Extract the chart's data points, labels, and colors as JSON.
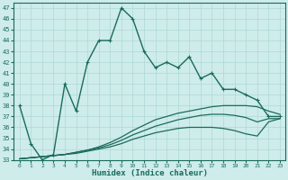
{
  "xlabel": "Humidex (Indice chaleur)",
  "background_color": "#ceecea",
  "grid_color": "#aed8d4",
  "line_color": "#1a6b5a",
  "xlim": [
    -0.5,
    23.5
  ],
  "ylim": [
    33,
    47.5
  ],
  "yticks": [
    33,
    34,
    35,
    36,
    37,
    38,
    39,
    40,
    41,
    42,
    43,
    44,
    45,
    46,
    47
  ],
  "xticks": [
    0,
    1,
    2,
    3,
    4,
    5,
    6,
    7,
    8,
    9,
    10,
    11,
    12,
    13,
    14,
    15,
    16,
    17,
    18,
    19,
    20,
    21,
    22,
    23
  ],
  "series": [
    {
      "x": [
        0,
        1,
        2,
        3,
        4,
        5,
        6,
        7,
        8,
        9,
        10,
        11,
        12,
        13,
        14,
        15,
        16,
        17,
        18,
        19,
        20,
        21,
        22,
        23
      ],
      "y": [
        38.0,
        34.5,
        33.0,
        33.5,
        40.0,
        37.5,
        42.0,
        44.0,
        44.0,
        47.0,
        46.0,
        43.0,
        41.5,
        42.0,
        41.5,
        42.5,
        40.5,
        41.0,
        39.5,
        39.5,
        39.0,
        38.5,
        37.0,
        37.0
      ],
      "style": "-.",
      "marker": "+",
      "lw": 1.0
    },
    {
      "x": [
        0,
        1,
        2,
        3,
        4,
        5,
        6,
        7,
        8,
        9,
        10,
        11,
        12,
        13,
        14,
        15,
        16,
        17,
        18,
        19,
        20,
        21,
        22,
        23
      ],
      "y": [
        33.1,
        33.2,
        33.3,
        33.4,
        33.5,
        33.7,
        33.9,
        34.2,
        34.6,
        35.1,
        35.7,
        36.2,
        36.7,
        37.0,
        37.3,
        37.5,
        37.7,
        37.9,
        38.0,
        38.0,
        38.0,
        37.9,
        37.5,
        37.2
      ],
      "style": "solid",
      "marker": null,
      "lw": 0.9
    },
    {
      "x": [
        0,
        1,
        2,
        3,
        4,
        5,
        6,
        7,
        8,
        9,
        10,
        11,
        12,
        13,
        14,
        15,
        16,
        17,
        18,
        19,
        20,
        21,
        22,
        23
      ],
      "y": [
        33.1,
        33.2,
        33.3,
        33.4,
        33.5,
        33.7,
        33.9,
        34.1,
        34.4,
        34.8,
        35.3,
        35.7,
        36.1,
        36.4,
        36.7,
        36.9,
        37.1,
        37.2,
        37.2,
        37.1,
        36.9,
        36.5,
        36.8,
        36.8
      ],
      "style": "solid",
      "marker": null,
      "lw": 0.9
    },
    {
      "x": [
        0,
        1,
        2,
        3,
        4,
        5,
        6,
        7,
        8,
        9,
        10,
        11,
        12,
        13,
        14,
        15,
        16,
        17,
        18,
        19,
        20,
        21,
        22,
        23
      ],
      "y": [
        33.1,
        33.2,
        33.3,
        33.4,
        33.5,
        33.6,
        33.8,
        34.0,
        34.2,
        34.5,
        34.9,
        35.2,
        35.5,
        35.7,
        35.9,
        36.0,
        36.0,
        36.0,
        35.9,
        35.7,
        35.4,
        35.2,
        36.5,
        36.8
      ],
      "style": "solid",
      "marker": null,
      "lw": 0.9
    }
  ]
}
